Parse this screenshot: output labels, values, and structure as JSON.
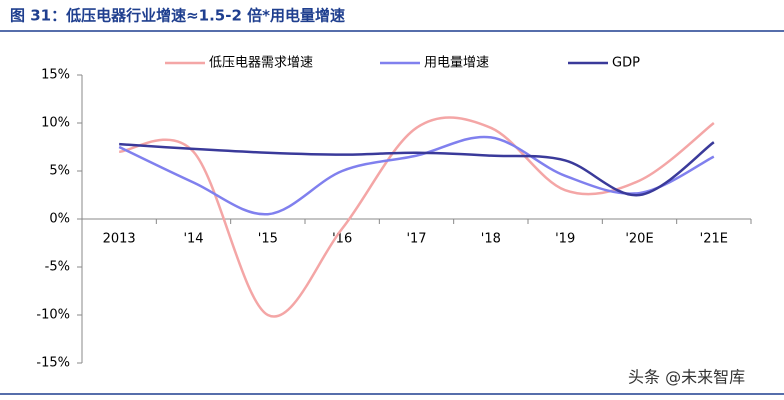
{
  "chart_data": {
    "type": "line",
    "title": "图 31：低压电器行业增速≈1.5-2 倍*用电量增速",
    "categories": [
      "2013",
      "'14",
      "'15",
      "'16",
      "'17",
      "'18",
      "'19",
      "'20E",
      "'21E"
    ],
    "series": [
      {
        "name": "低压电器需求增速",
        "color": "#f4a6a6",
        "values": [
          7,
          7,
          -10,
          -1,
          9.5,
          9.5,
          3,
          4,
          10
        ]
      },
      {
        "name": "用电量增速",
        "color": "#8080ee",
        "values": [
          7.5,
          3.8,
          0.5,
          5,
          6.6,
          8.5,
          4.5,
          2.7,
          6.5
        ]
      },
      {
        "name": "GDP",
        "color": "#3a3a9a",
        "values": [
          7.8,
          7.3,
          6.9,
          6.7,
          6.9,
          6.6,
          6.1,
          2.5,
          8
        ]
      }
    ],
    "ylim": [
      -15,
      15
    ],
    "yticks": [
      {
        "value": -15,
        "label": "-15%"
      },
      {
        "value": -10,
        "label": "-10%"
      },
      {
        "value": -5,
        "label": "-5%"
      },
      {
        "value": 0,
        "label": "0%"
      },
      {
        "value": 5,
        "label": "5%"
      },
      {
        "value": 10,
        "label": "10%"
      },
      {
        "value": 15,
        "label": "15%"
      }
    ],
    "grid": false,
    "legend": "top",
    "smooth": true,
    "watermark": "头条 @未来智库"
  }
}
